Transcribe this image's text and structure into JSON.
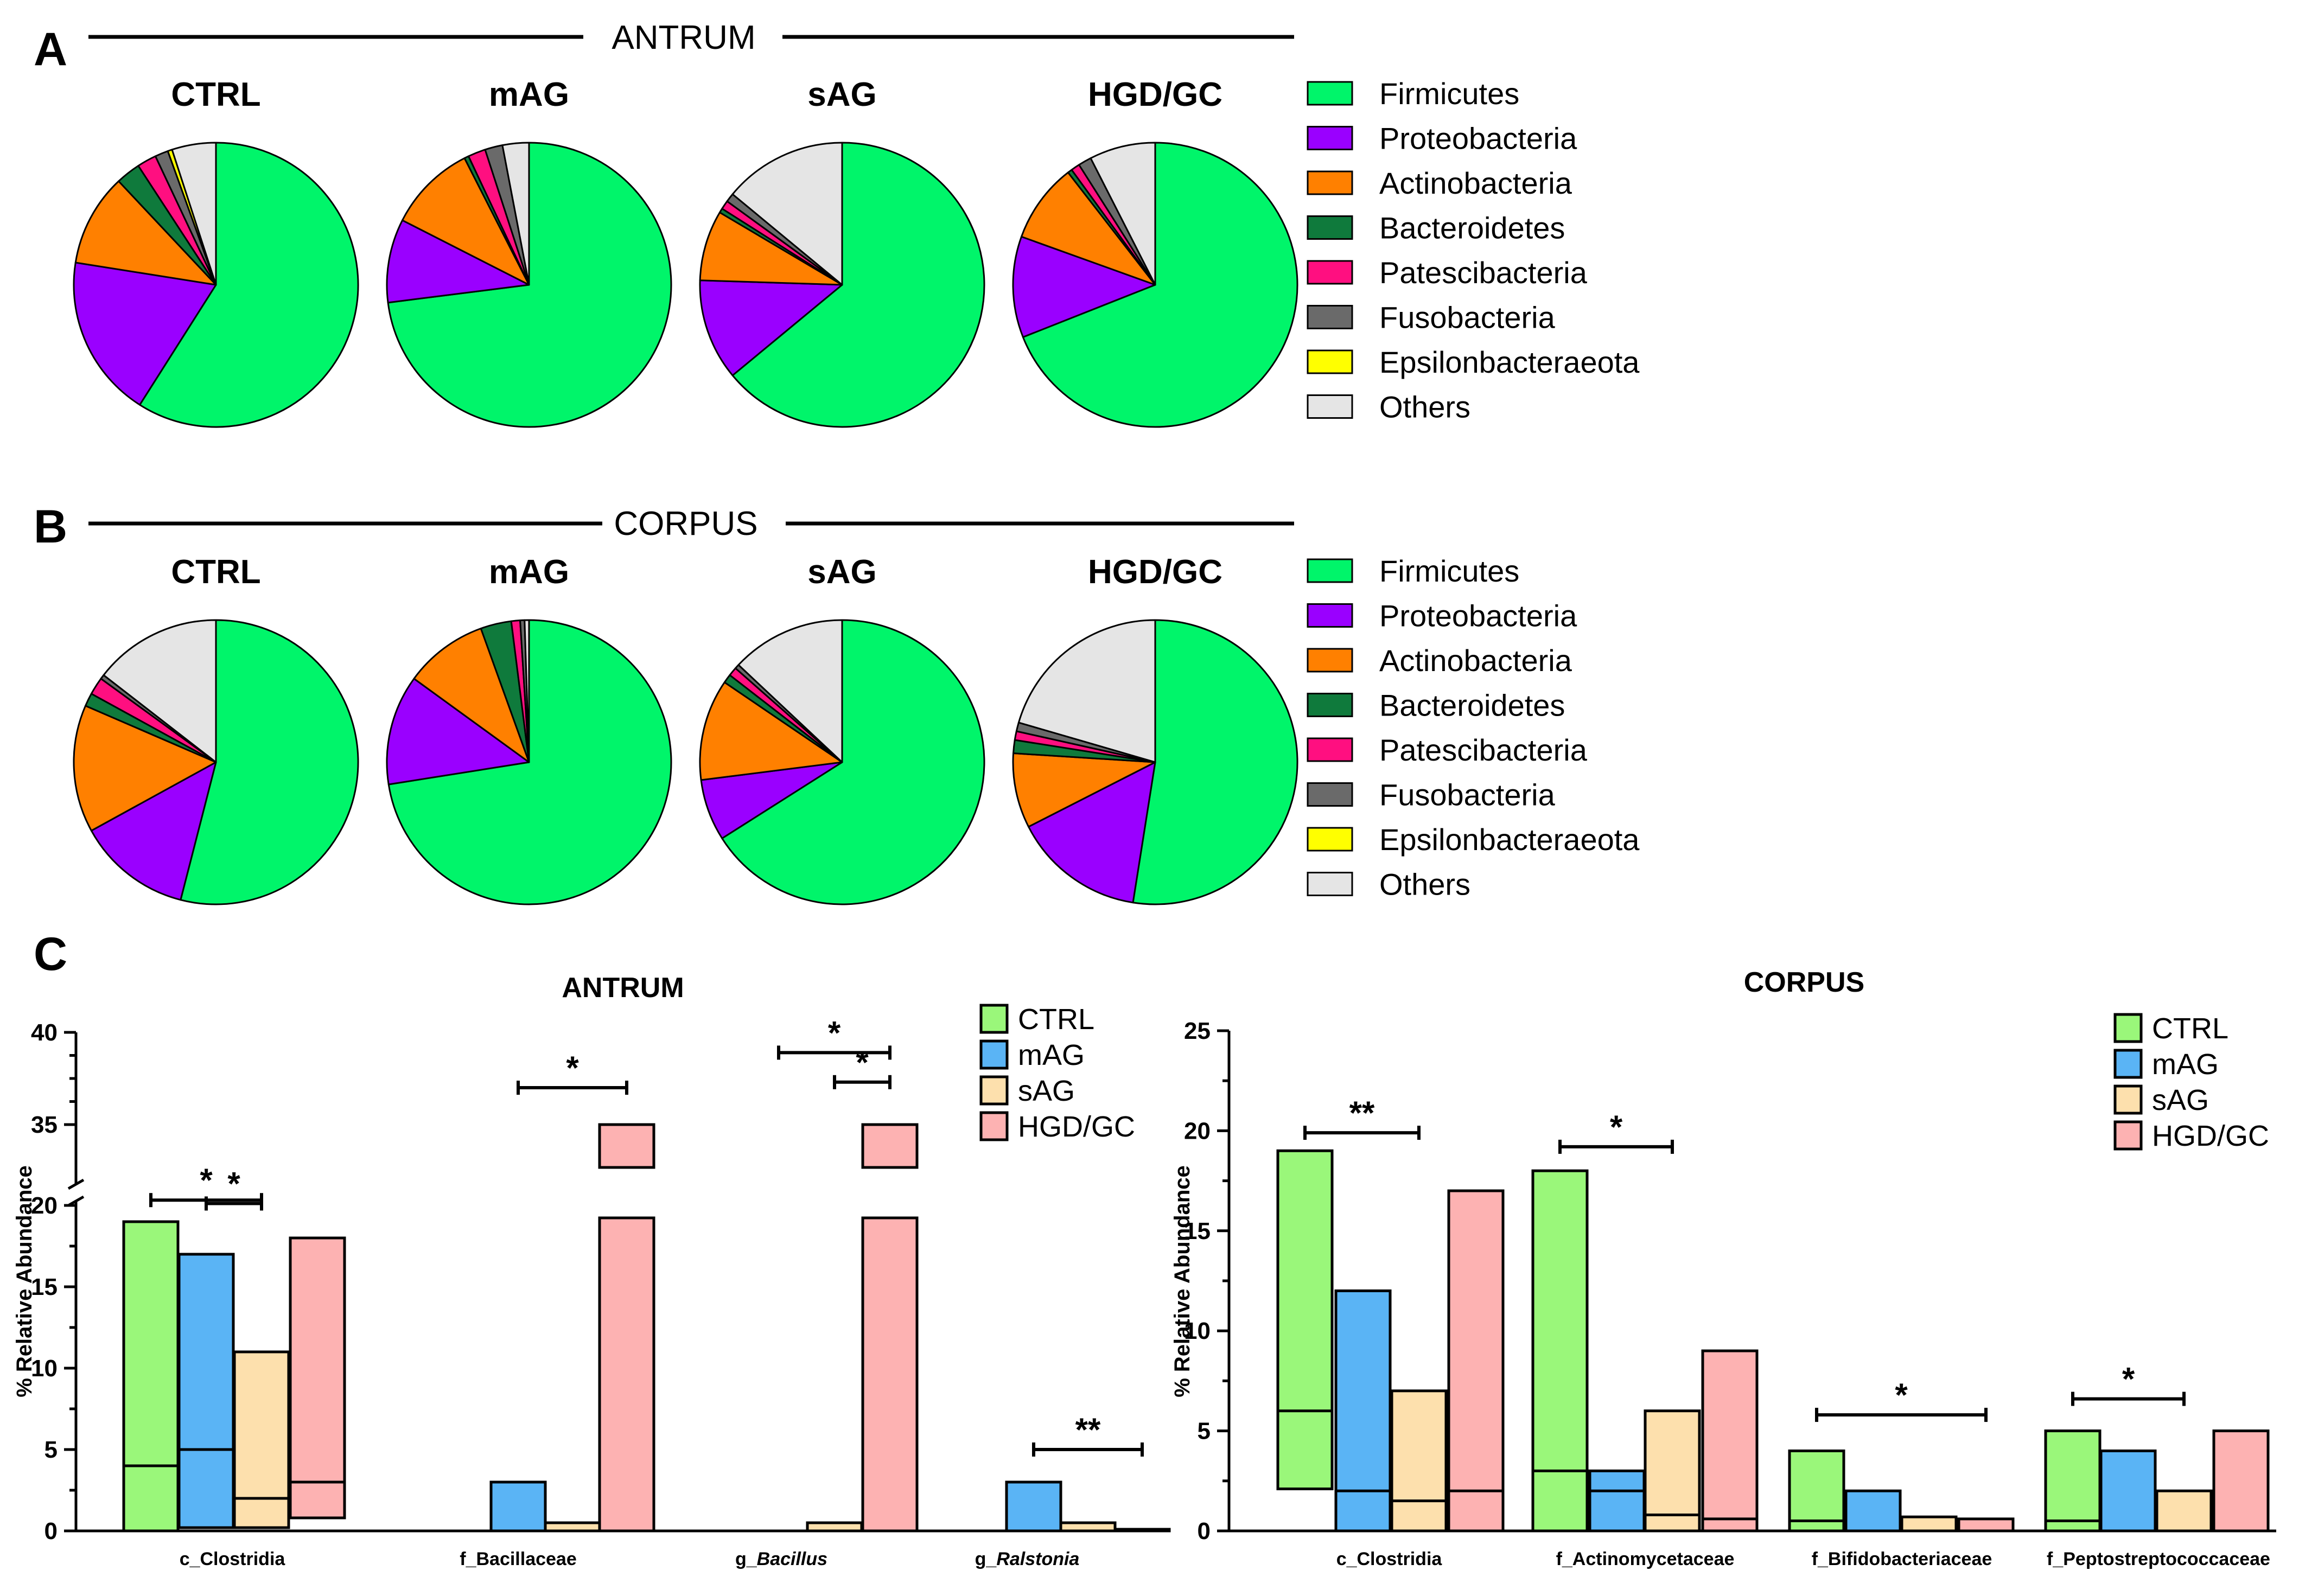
{
  "panels": {
    "a": {
      "letter": "A",
      "title": "ANTRUM"
    },
    "b": {
      "letter": "B",
      "title": "CORPUS"
    },
    "c": {
      "letter": "C"
    }
  },
  "phyla": [
    {
      "name": "Firmicutes",
      "color": "#00f56a"
    },
    {
      "name": "Proteobacteria",
      "color": "#9a00ff"
    },
    {
      "name": "Actinobacteria",
      "color": "#ff8000"
    },
    {
      "name": "Bacteroidetes",
      "color": "#0f7a3c"
    },
    {
      "name": "Patescibacteria",
      "color": "#ff0f80"
    },
    {
      "name": "Fusobacteria",
      "color": "#6a6a6a"
    },
    {
      "name": "Epsilonbacteraeota",
      "color": "#ffff00"
    },
    {
      "name": "Others",
      "color": "#e5e5e5"
    }
  ],
  "groups": [
    {
      "name": "CTRL",
      "color": "#9af77a"
    },
    {
      "name": "mAG",
      "color": "#5ab4f5"
    },
    {
      "name": "sAG",
      "color": "#fde0ad"
    },
    {
      "name": "HGD/GC",
      "color": "#fdb2b2"
    }
  ],
  "chart_data": [
    {
      "type": "pie",
      "title": "CTRL",
      "section": "ANTRUM",
      "labels": [
        "Firmicutes",
        "Proteobacteria",
        "Actinobacteria",
        "Bacteroidetes",
        "Patescibacteria",
        "Fusobacteria",
        "Epsilonbacteraeota",
        "Others"
      ],
      "values": [
        59.0,
        18.5,
        10.5,
        2.8,
        2.2,
        1.5,
        0.5,
        5.0
      ]
    },
    {
      "type": "pie",
      "title": "mAG",
      "section": "ANTRUM",
      "labels": [
        "Firmicutes",
        "Proteobacteria",
        "Actinobacteria",
        "Bacteroidetes",
        "Patescibacteria",
        "Fusobacteria",
        "Epsilonbacteraeota",
        "Others"
      ],
      "values": [
        73.0,
        9.5,
        10.0,
        0.5,
        2.0,
        2.0,
        0.0,
        3.0
      ]
    },
    {
      "type": "pie",
      "title": "sAG",
      "section": "ANTRUM",
      "labels": [
        "Firmicutes",
        "Proteobacteria",
        "Actinobacteria",
        "Bacteroidetes",
        "Patescibacteria",
        "Fusobacteria",
        "Epsilonbacteraeota",
        "Others"
      ],
      "values": [
        64.0,
        11.5,
        8.0,
        0.5,
        1.0,
        1.0,
        0.0,
        14.0
      ]
    },
    {
      "type": "pie",
      "title": "HGD/GC",
      "section": "ANTRUM",
      "labels": [
        "Firmicutes",
        "Proteobacteria",
        "Actinobacteria",
        "Bacteroidetes",
        "Patescibacteria",
        "Fusobacteria",
        "Epsilonbacteraeota",
        "Others"
      ],
      "values": [
        69.0,
        11.5,
        9.0,
        0.5,
        1.0,
        1.5,
        0.0,
        7.5
      ]
    },
    {
      "type": "pie",
      "title": "CTRL",
      "section": "CORPUS",
      "labels": [
        "Firmicutes",
        "Proteobacteria",
        "Actinobacteria",
        "Bacteroidetes",
        "Patescibacteria",
        "Fusobacteria",
        "Epsilonbacteraeota",
        "Others"
      ],
      "values": [
        54.0,
        13.0,
        14.5,
        1.5,
        2.0,
        0.5,
        0.0,
        14.5
      ]
    },
    {
      "type": "pie",
      "title": "mAG",
      "section": "CORPUS",
      "labels": [
        "Firmicutes",
        "Proteobacteria",
        "Actinobacteria",
        "Bacteroidetes",
        "Patescibacteria",
        "Fusobacteria",
        "Epsilonbacteraeota",
        "Others"
      ],
      "values": [
        72.5,
        12.5,
        9.5,
        3.5,
        1.0,
        0.5,
        0.0,
        0.5
      ]
    },
    {
      "type": "pie",
      "title": "sAG",
      "section": "CORPUS",
      "labels": [
        "Firmicutes",
        "Proteobacteria",
        "Actinobacteria",
        "Bacteroidetes",
        "Patescibacteria",
        "Fusobacteria",
        "Epsilonbacteraeota",
        "Others"
      ],
      "values": [
        66.0,
        7.0,
        11.5,
        1.0,
        1.0,
        0.5,
        0.0,
        13.0
      ]
    },
    {
      "type": "pie",
      "title": "HGD/GC",
      "section": "CORPUS",
      "labels": [
        "Firmicutes",
        "Proteobacteria",
        "Actinobacteria",
        "Bacteroidetes",
        "Patescibacteria",
        "Fusobacteria",
        "Epsilonbacteraeota",
        "Others"
      ],
      "values": [
        52.5,
        15.0,
        8.5,
        1.5,
        1.0,
        1.0,
        0.0,
        20.5
      ]
    },
    {
      "type": "bar",
      "title": "ANTRUM",
      "ylabel": "% Relative Abundance",
      "xlabel": "",
      "ylim": [
        0,
        40
      ],
      "axis_break": [
        20,
        32
      ],
      "yticks": [
        0,
        5,
        10,
        15,
        20,
        35,
        40
      ],
      "categories": [
        "c_Clostridia",
        "f_Bacillaceae",
        "g_Bacillus",
        "g_Ralstonia"
      ],
      "category_italic": [
        false,
        false,
        true,
        true
      ],
      "series": [
        {
          "name": "CTRL",
          "values": [
            19,
            0,
            0,
            0
          ],
          "lows": [
            0,
            0,
            0,
            0
          ],
          "means": [
            4,
            0,
            0,
            0
          ]
        },
        {
          "name": "mAG",
          "values": [
            17,
            3,
            0,
            3
          ],
          "lows": [
            0.2,
            0,
            0,
            0
          ],
          "means": [
            5,
            0,
            0,
            0
          ]
        },
        {
          "name": "sAG",
          "values": [
            11,
            0.5,
            0.5,
            0.5
          ],
          "lows": [
            0.2,
            0,
            0,
            0
          ],
          "means": [
            2,
            0,
            0,
            0
          ]
        },
        {
          "name": "HGD/GC",
          "values": [
            18,
            35,
            35,
            0.1
          ],
          "lows": [
            0.8,
            0,
            0,
            0
          ],
          "means": [
            3,
            0,
            0,
            0
          ]
        }
      ],
      "significance": [
        {
          "category": "c_Clostridia",
          "from": "CTRL",
          "to": "sAG",
          "label": "*",
          "level": 22.5
        },
        {
          "category": "c_Clostridia",
          "from": "mAG",
          "to": "sAG",
          "label": "*",
          "level": 20.9
        },
        {
          "category": "f_Bacillaceae",
          "from": "mAG",
          "to": "HGD/GC",
          "label": "*",
          "level": 37.0
        },
        {
          "category": "g_Bacillus",
          "from": "mAG",
          "to": "HGD/GC",
          "label": "*",
          "level": 38.9
        },
        {
          "category": "g_Bacillus",
          "from": "sAG",
          "to": "HGD/GC",
          "label": "*",
          "level": 37.3
        },
        {
          "category": "g_Ralstonia",
          "from": "mAG",
          "to": "HGD/GC",
          "label": "**",
          "level": 5.0
        }
      ]
    },
    {
      "type": "bar",
      "title": "CORPUS",
      "ylabel": "% Relative Abundance",
      "xlabel": "",
      "ylim": [
        0,
        25
      ],
      "yticks": [
        0,
        5,
        10,
        15,
        20,
        25
      ],
      "categories": [
        "c_Clostridia",
        "f_Actinomycetaceae",
        "f_Bifidobacteriaceae",
        "f_Peptostreptococcaceae"
      ],
      "category_italic": [
        false,
        false,
        false,
        false
      ],
      "series": [
        {
          "name": "CTRL",
          "values": [
            19,
            18,
            4,
            5
          ],
          "lows": [
            2.1,
            0,
            0,
            0
          ],
          "means": [
            6,
            3,
            0.5,
            0.5
          ]
        },
        {
          "name": "mAG",
          "values": [
            12,
            3,
            2,
            4
          ],
          "lows": [
            0,
            0,
            0,
            0
          ],
          "means": [
            2,
            2,
            0,
            0
          ]
        },
        {
          "name": "sAG",
          "values": [
            7,
            6,
            0.7,
            2
          ],
          "lows": [
            0,
            0,
            0,
            0
          ],
          "means": [
            1.5,
            0.8,
            0,
            0
          ]
        },
        {
          "name": "HGD/GC",
          "values": [
            17,
            9,
            0.6,
            5
          ],
          "lows": [
            0,
            0,
            0,
            0
          ],
          "means": [
            2,
            0.6,
            0,
            0
          ]
        }
      ],
      "significance": [
        {
          "category": "c_Clostridia",
          "from": "CTRL",
          "to": "sAG",
          "label": "**",
          "level": 19.9
        },
        {
          "category": "f_Actinomycetaceae",
          "from": "CTRL",
          "to": "sAG",
          "label": "*",
          "level": 19.2
        },
        {
          "category": "f_Bifidobacteriaceae",
          "from": "CTRL",
          "to": "HGD/GC",
          "label": "*",
          "level": 5.8
        },
        {
          "category": "f_Peptostreptococcaceae",
          "from": "CTRL",
          "to": "sAG",
          "label": "*",
          "level": 6.6
        }
      ]
    }
  ]
}
